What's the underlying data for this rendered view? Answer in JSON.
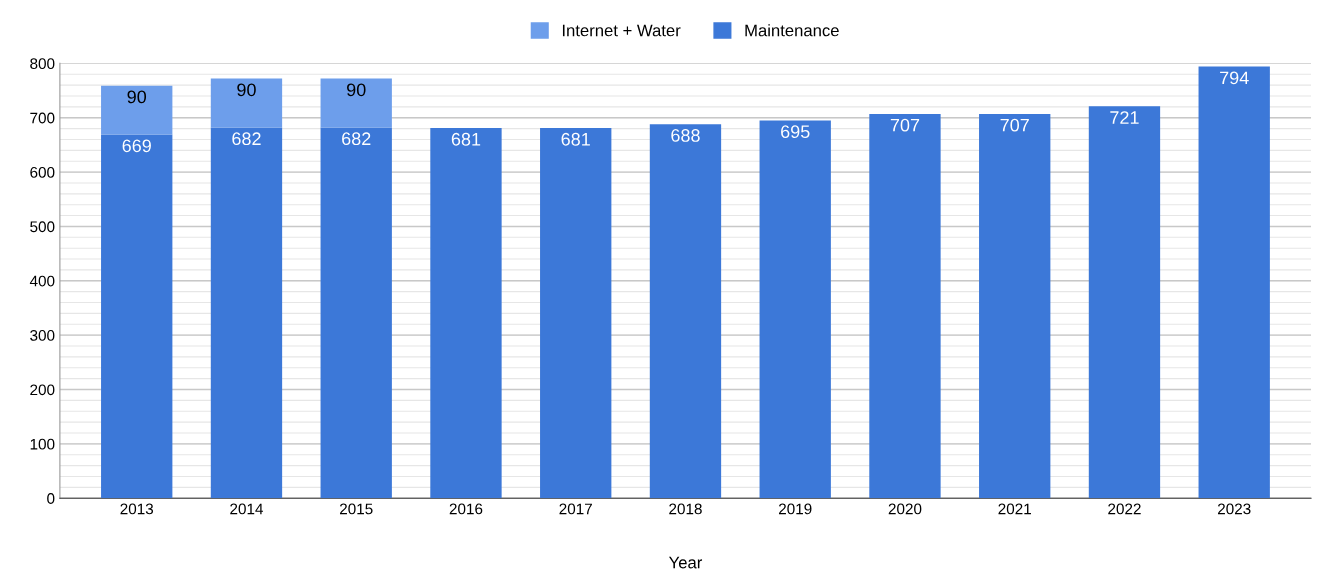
{
  "chart_data": {
    "type": "bar",
    "stacked": true,
    "xlabel": "Year",
    "categories": [
      "2013",
      "2014",
      "2015",
      "2016",
      "2017",
      "2018",
      "2019",
      "2020",
      "2021",
      "2022",
      "2023"
    ],
    "series": [
      {
        "name": "Maintenance",
        "color": "#3c78d8",
        "values": [
          669,
          682,
          682,
          681,
          681,
          688,
          695,
          707,
          707,
          721,
          794
        ]
      },
      {
        "name": "Internet + Water",
        "color": "#6d9eeb",
        "values": [
          90,
          90,
          90,
          null,
          null,
          null,
          null,
          null,
          null,
          null,
          null
        ]
      }
    ],
    "ylim": [
      0,
      800
    ],
    "yticks": [
      0,
      100,
      200,
      300,
      400,
      500,
      600,
      700,
      800
    ],
    "grid": "y",
    "legend": "top",
    "data_labels": true
  }
}
